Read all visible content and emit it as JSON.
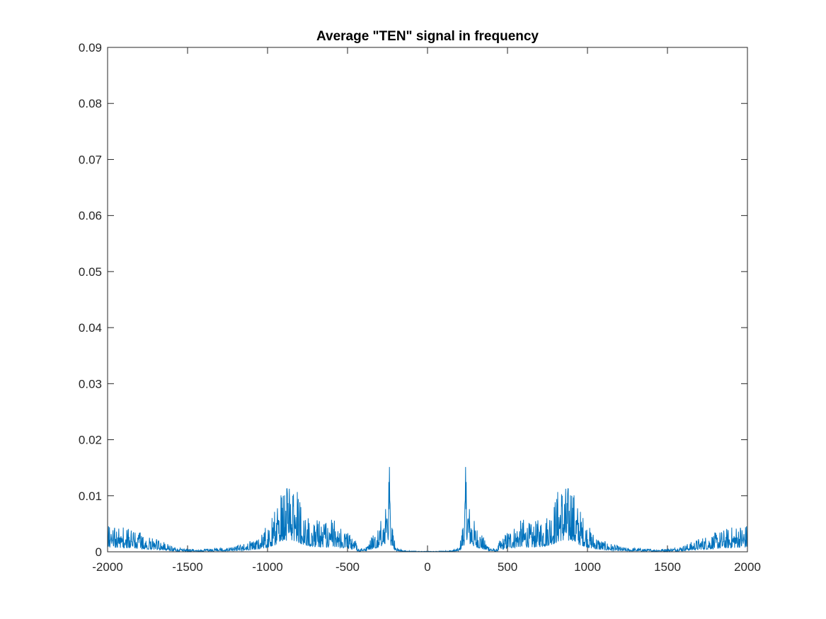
{
  "chart_data": {
    "type": "line",
    "title": "Average \"TEN\" signal in frequency",
    "xlabel": "",
    "ylabel": "",
    "xlim": [
      -2000,
      2000
    ],
    "ylim": [
      0,
      0.09
    ],
    "xticks": [
      -2000,
      -1500,
      -1000,
      -500,
      0,
      500,
      1000,
      1500,
      2000
    ],
    "xtick_labels": [
      "-2000",
      "-1500",
      "-1000",
      "-500",
      "0",
      "500",
      "1000",
      "1500",
      "2000"
    ],
    "yticks": [
      0,
      0.01,
      0.02,
      0.03,
      0.04,
      0.05,
      0.06,
      0.07,
      0.08,
      0.09
    ],
    "ytick_labels": [
      "0",
      "0.01",
      "0.02",
      "0.03",
      "0.04",
      "0.05",
      "0.06",
      "0.07",
      "0.08",
      "0.09"
    ],
    "grid": false,
    "line_color": "#0072BD",
    "series": [
      {
        "x": [
          0,
          50,
          100,
          150,
          200,
          230,
          240,
          250,
          260,
          280,
          300,
          330,
          360,
          400,
          430,
          450,
          480,
          500,
          550,
          600,
          650,
          700,
          750,
          800,
          830,
          860,
          880,
          900,
          920,
          950,
          1000,
          1050,
          1100,
          1150,
          1200,
          1250,
          1300,
          1400,
          1500,
          1550,
          1600,
          1650,
          1700,
          1750,
          1800,
          1850,
          1900,
          1950,
          2000
        ],
        "envelope": [
          0.0001,
          0.0001,
          0.0002,
          0.0003,
          0.0008,
          0.008,
          0.017,
          0.012,
          0.009,
          0.007,
          0.005,
          0.004,
          0.002,
          0.0008,
          0.0004,
          0.002,
          0.003,
          0.004,
          0.005,
          0.006,
          0.005,
          0.006,
          0.007,
          0.01,
          0.013,
          0.012,
          0.012,
          0.014,
          0.01,
          0.008,
          0.005,
          0.003,
          0.002,
          0.0015,
          0.001,
          0.0007,
          0.0007,
          0.0005,
          0.0006,
          0.0008,
          0.0012,
          0.0018,
          0.0025,
          0.003,
          0.0035,
          0.004,
          0.0045,
          0.005,
          0.005
        ]
      }
    ]
  }
}
